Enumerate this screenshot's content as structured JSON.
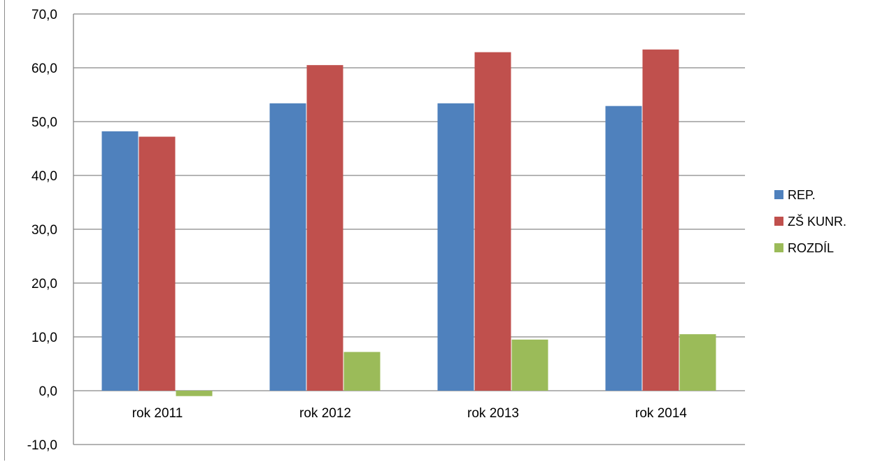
{
  "chart_data": {
    "type": "bar",
    "categories": [
      "rok 2011",
      "rok 2012",
      "rok 2013",
      "rok 2014"
    ],
    "series": [
      {
        "name": "REP.",
        "color": "#4f81bd",
        "values": [
          48.2,
          53.4,
          53.4,
          52.9
        ]
      },
      {
        "name": "ZŠ KUNR.",
        "color": "#c0504d",
        "values": [
          47.2,
          60.5,
          62.9,
          63.4
        ]
      },
      {
        "name": "ROZDÍL",
        "color": "#9bbb59",
        "values": [
          -1.0,
          7.2,
          9.5,
          10.5
        ]
      }
    ],
    "ylim": [
      -10,
      70
    ],
    "yticks": [
      -10,
      0,
      10,
      20,
      30,
      40,
      50,
      60,
      70
    ],
    "ytick_labels": [
      "-10,0",
      "0,0",
      "10,0",
      "20,0",
      "30,0",
      "40,0",
      "50,0",
      "60,0",
      "70,0"
    ],
    "grid": true,
    "gridline_color": "#868686",
    "legend_position": "right"
  }
}
